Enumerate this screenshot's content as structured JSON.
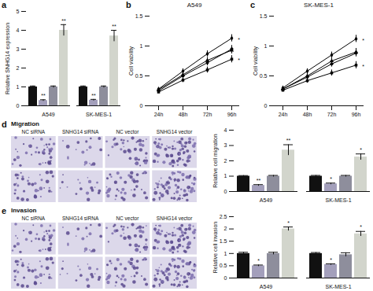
{
  "chart_data": [
    {
      "panel": "a",
      "type": "bar",
      "categories": [
        "A549",
        "SK-MES-1"
      ],
      "y_label": "Relative SNHG14 expression",
      "ylim": [
        0,
        5
      ],
      "yticks": [
        0,
        1,
        2,
        3,
        4,
        5
      ],
      "series": [
        {
          "color": "#111111",
          "values": [
            1.0,
            1.0
          ],
          "errors": [
            0.05,
            0.05
          ],
          "annotations": [
            null,
            null
          ]
        },
        {
          "color": "#a39fbb",
          "values": [
            0.28,
            0.3
          ],
          "errors": [
            0.04,
            0.04
          ],
          "annotations": [
            "**",
            "**"
          ]
        },
        {
          "color": "#8e8e9c",
          "values": [
            1.0,
            1.0
          ],
          "errors": [
            0.05,
            0.05
          ],
          "annotations": [
            null,
            null
          ]
        },
        {
          "color": "#d2d5cc",
          "values": [
            4.0,
            3.7
          ],
          "errors": [
            0.3,
            0.3
          ],
          "annotations": [
            "**",
            "**"
          ]
        }
      ]
    },
    {
      "panel": "b",
      "type": "line",
      "title": "A549",
      "categories": [
        "24h",
        "48h",
        "72h",
        "96h"
      ],
      "y_label": "Cell viability",
      "ylim": [
        0,
        1.5
      ],
      "yticks": [
        0,
        0.5,
        1,
        1.5
      ],
      "series": [
        {
          "color": "#000000",
          "marker": "circle",
          "values": [
            0.25,
            0.5,
            0.72,
            0.95
          ],
          "errors": [
            0.02,
            0.04,
            0.05,
            0.06
          ],
          "annotations": [
            null,
            null,
            null,
            null
          ]
        },
        {
          "color": "#000000",
          "marker": "square",
          "values": [
            0.23,
            0.43,
            0.6,
            0.78
          ],
          "errors": [
            0.02,
            0.04,
            0.05,
            0.06
          ],
          "annotations": [
            null,
            null,
            null,
            "*"
          ]
        },
        {
          "color": "#000000",
          "marker": "triangle",
          "values": [
            0.27,
            0.52,
            0.76,
            0.93
          ],
          "errors": [
            0.02,
            0.04,
            0.05,
            0.06
          ],
          "annotations": [
            null,
            null,
            null,
            null
          ]
        },
        {
          "color": "#000000",
          "marker": "diamond",
          "values": [
            0.28,
            0.58,
            0.87,
            1.13
          ],
          "errors": [
            0.02,
            0.04,
            0.05,
            0.06
          ],
          "annotations": [
            null,
            null,
            null,
            "*"
          ]
        }
      ]
    },
    {
      "panel": "c",
      "type": "line",
      "title": "SK-MES-1",
      "categories": [
        "24h",
        "48h",
        "72h",
        "96h"
      ],
      "y_label": "Cell viability",
      "ylim": [
        0,
        1.5
      ],
      "yticks": [
        0,
        0.5,
        1,
        1.5
      ],
      "series": [
        {
          "color": "#000000",
          "marker": "circle",
          "values": [
            0.28,
            0.48,
            0.7,
            0.88
          ],
          "errors": [
            0.02,
            0.04,
            0.05,
            0.06
          ],
          "annotations": [
            null,
            null,
            null,
            null
          ]
        },
        {
          "color": "#000000",
          "marker": "square",
          "values": [
            0.26,
            0.42,
            0.55,
            0.68
          ],
          "errors": [
            0.02,
            0.04,
            0.05,
            0.06
          ],
          "annotations": [
            null,
            null,
            null,
            "*"
          ]
        },
        {
          "color": "#000000",
          "marker": "triangle",
          "values": [
            0.28,
            0.5,
            0.75,
            0.9
          ],
          "errors": [
            0.02,
            0.04,
            0.05,
            0.06
          ],
          "annotations": [
            null,
            null,
            null,
            null
          ]
        },
        {
          "color": "#000000",
          "marker": "diamond",
          "values": [
            0.3,
            0.58,
            0.85,
            1.12
          ],
          "errors": [
            0.02,
            0.04,
            0.05,
            0.06
          ],
          "annotations": [
            null,
            null,
            null,
            "*"
          ]
        }
      ]
    },
    {
      "panel": "d",
      "type": "bar",
      "images_title": "Migration",
      "image_labels": [
        "NC siRNA",
        "SNHG14 siRNA",
        "NC vector",
        "SNHG14 vector"
      ],
      "categories": [
        "A549",
        "SK-MES-1"
      ],
      "y_label": "Relative cell migration",
      "ylim": [
        0,
        4
      ],
      "yticks": [
        0,
        1,
        2,
        3,
        4
      ],
      "series": [
        {
          "color": "#111111",
          "values": [
            1.0,
            1.0
          ],
          "errors": [
            0.04,
            0.05
          ],
          "annotations": [
            null,
            null
          ]
        },
        {
          "color": "#a39fbb",
          "values": [
            0.4,
            0.5
          ],
          "errors": [
            0.05,
            0.05
          ],
          "annotations": [
            "**",
            "*"
          ]
        },
        {
          "color": "#8e8e9c",
          "values": [
            1.0,
            1.0
          ],
          "errors": [
            0.05,
            0.05
          ],
          "annotations": [
            null,
            null
          ]
        },
        {
          "color": "#d2d5cc",
          "values": [
            2.7,
            2.25
          ],
          "errors": [
            0.35,
            0.2
          ],
          "annotations": [
            "**",
            "*"
          ]
        }
      ]
    },
    {
      "panel": "e",
      "type": "bar",
      "images_title": "Invasion",
      "image_labels": [
        "NC siRNA",
        "SNHG14 siRNA",
        "NC vector",
        "SNHG14 vector"
      ],
      "categories": [
        "A549",
        "SK-MES-1"
      ],
      "y_label": "Relative cell invasion",
      "ylim": [
        0,
        2.5
      ],
      "yticks": [
        0,
        0.5,
        1,
        1.5,
        2,
        2.5
      ],
      "series": [
        {
          "color": "#111111",
          "values": [
            1.0,
            1.0
          ],
          "errors": [
            0.05,
            0.04
          ],
          "annotations": [
            null,
            null
          ]
        },
        {
          "color": "#a39fbb",
          "values": [
            0.5,
            0.55
          ],
          "errors": [
            0.03,
            0.03
          ],
          "annotations": [
            "*",
            "*"
          ]
        },
        {
          "color": "#8e8e9c",
          "values": [
            1.0,
            0.95
          ],
          "errors": [
            0.05,
            0.08
          ],
          "annotations": [
            null,
            null
          ]
        },
        {
          "color": "#d2d5cc",
          "values": [
            2.0,
            1.8
          ],
          "errors": [
            0.08,
            0.1
          ],
          "annotations": [
            "*",
            "*"
          ]
        }
      ]
    }
  ]
}
